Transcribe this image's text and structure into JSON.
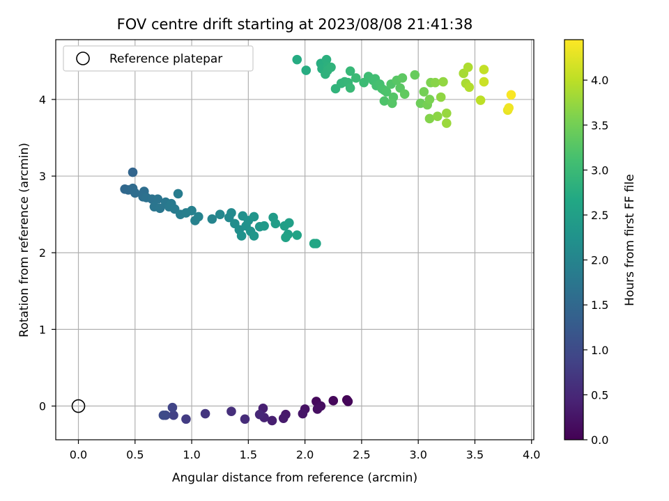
{
  "chart_data": {
    "type": "scatter",
    "title": "FOV centre drift starting at 2023/08/08 21:41:38",
    "xlabel": "Angular distance from reference (arcmin)",
    "ylabel": "Rotation from reference (arcmin)",
    "xlim": [
      -0.2,
      4.02
    ],
    "ylim": [
      -0.44,
      4.78
    ],
    "xticks": [
      "0.0",
      "0.5",
      "1.0",
      "1.5",
      "2.0",
      "2.5",
      "3.0",
      "3.5",
      "4.0"
    ],
    "yticks": [
      "0",
      "1",
      "2",
      "3",
      "4"
    ],
    "grid": true,
    "legend": {
      "placement": "upper left",
      "entries": [
        "Reference platepar"
      ]
    },
    "reference_point": {
      "x": 0.0,
      "y": 0.0,
      "marker": "hollow circle"
    },
    "colorbar": {
      "label": "Hours from first FF file",
      "range": [
        0.0,
        4.45
      ],
      "ticks": [
        "0.0",
        "0.5",
        "1.0",
        "1.5",
        "2.0",
        "2.5",
        "3.0",
        "3.5",
        "4.0"
      ],
      "colormap": "viridis"
    },
    "points": [
      {
        "x": 2.37,
        "y": 0.08,
        "h": 0.02
      },
      {
        "x": 2.38,
        "y": 0.06,
        "h": 0.05
      },
      {
        "x": 2.25,
        "y": 0.07,
        "h": 0.08
      },
      {
        "x": 2.1,
        "y": 0.06,
        "h": 0.1
      },
      {
        "x": 2.14,
        "y": 0.0,
        "h": 0.15
      },
      {
        "x": 2.11,
        "y": -0.04,
        "h": 0.18
      },
      {
        "x": 2.0,
        "y": -0.04,
        "h": 0.22
      },
      {
        "x": 1.98,
        "y": -0.1,
        "h": 0.25
      },
      {
        "x": 1.83,
        "y": -0.11,
        "h": 0.3
      },
      {
        "x": 1.81,
        "y": -0.16,
        "h": 0.33
      },
      {
        "x": 1.71,
        "y": -0.19,
        "h": 0.38
      },
      {
        "x": 1.63,
        "y": -0.03,
        "h": 0.4
      },
      {
        "x": 1.64,
        "y": -0.15,
        "h": 0.45
      },
      {
        "x": 1.6,
        "y": -0.11,
        "h": 0.5
      },
      {
        "x": 1.47,
        "y": -0.17,
        "h": 0.55
      },
      {
        "x": 1.35,
        "y": -0.07,
        "h": 0.6
      },
      {
        "x": 1.12,
        "y": -0.1,
        "h": 0.7
      },
      {
        "x": 0.95,
        "y": -0.17,
        "h": 0.78
      },
      {
        "x": 0.84,
        "y": -0.12,
        "h": 0.85
      },
      {
        "x": 0.83,
        "y": -0.02,
        "h": 0.9
      },
      {
        "x": 0.77,
        "y": -0.12,
        "h": 0.95
      },
      {
        "x": 0.75,
        "y": -0.12,
        "h": 1.0
      },
      {
        "x": 0.48,
        "y": 3.05,
        "h": 1.45
      },
      {
        "x": 0.41,
        "y": 2.83,
        "h": 1.5
      },
      {
        "x": 0.44,
        "y": 2.82,
        "h": 1.52
      },
      {
        "x": 0.48,
        "y": 2.84,
        "h": 1.55
      },
      {
        "x": 0.5,
        "y": 2.78,
        "h": 1.58
      },
      {
        "x": 0.58,
        "y": 2.8,
        "h": 1.6
      },
      {
        "x": 0.57,
        "y": 2.73,
        "h": 1.62
      },
      {
        "x": 0.6,
        "y": 2.72,
        "h": 1.65
      },
      {
        "x": 0.65,
        "y": 2.7,
        "h": 1.67
      },
      {
        "x": 0.7,
        "y": 2.7,
        "h": 1.7
      },
      {
        "x": 0.67,
        "y": 2.6,
        "h": 1.72
      },
      {
        "x": 0.72,
        "y": 2.58,
        "h": 1.75
      },
      {
        "x": 0.77,
        "y": 2.66,
        "h": 1.77
      },
      {
        "x": 0.8,
        "y": 2.6,
        "h": 1.8
      },
      {
        "x": 0.82,
        "y": 2.64,
        "h": 1.82
      },
      {
        "x": 0.85,
        "y": 2.57,
        "h": 1.84
      },
      {
        "x": 0.88,
        "y": 2.77,
        "h": 1.86
      },
      {
        "x": 0.9,
        "y": 2.5,
        "h": 1.88
      },
      {
        "x": 0.95,
        "y": 2.52,
        "h": 1.9
      },
      {
        "x": 1.0,
        "y": 2.55,
        "h": 1.92
      },
      {
        "x": 1.03,
        "y": 2.42,
        "h": 1.94
      },
      {
        "x": 1.06,
        "y": 2.47,
        "h": 1.96
      },
      {
        "x": 1.18,
        "y": 2.44,
        "h": 2.0
      },
      {
        "x": 1.25,
        "y": 2.5,
        "h": 2.05
      },
      {
        "x": 1.33,
        "y": 2.46,
        "h": 2.08
      },
      {
        "x": 1.35,
        "y": 2.52,
        "h": 2.1
      },
      {
        "x": 1.38,
        "y": 2.38,
        "h": 2.15
      },
      {
        "x": 1.42,
        "y": 2.3,
        "h": 2.18
      },
      {
        "x": 1.45,
        "y": 2.48,
        "h": 2.2
      },
      {
        "x": 1.48,
        "y": 2.35,
        "h": 2.22
      },
      {
        "x": 1.44,
        "y": 2.22,
        "h": 2.24
      },
      {
        "x": 1.5,
        "y": 2.42,
        "h": 2.25
      },
      {
        "x": 1.52,
        "y": 2.28,
        "h": 2.27
      },
      {
        "x": 1.55,
        "y": 2.47,
        "h": 2.3
      },
      {
        "x": 1.55,
        "y": 2.22,
        "h": 2.32
      },
      {
        "x": 1.6,
        "y": 2.34,
        "h": 2.35
      },
      {
        "x": 1.64,
        "y": 2.35,
        "h": 2.38
      },
      {
        "x": 1.72,
        "y": 2.46,
        "h": 2.42
      },
      {
        "x": 1.74,
        "y": 2.38,
        "h": 2.45
      },
      {
        "x": 1.82,
        "y": 2.35,
        "h": 2.48
      },
      {
        "x": 1.86,
        "y": 2.39,
        "h": 2.5
      },
      {
        "x": 1.85,
        "y": 2.24,
        "h": 2.52
      },
      {
        "x": 1.83,
        "y": 2.2,
        "h": 2.55
      },
      {
        "x": 1.93,
        "y": 2.23,
        "h": 2.58
      },
      {
        "x": 2.1,
        "y": 2.12,
        "h": 2.62
      },
      {
        "x": 2.08,
        "y": 2.12,
        "h": 2.64
      },
      {
        "x": 1.93,
        "y": 4.52,
        "h": 2.72
      },
      {
        "x": 2.01,
        "y": 4.38,
        "h": 2.74
      },
      {
        "x": 2.14,
        "y": 4.47,
        "h": 2.76
      },
      {
        "x": 2.15,
        "y": 4.4,
        "h": 2.78
      },
      {
        "x": 2.19,
        "y": 4.52,
        "h": 2.8
      },
      {
        "x": 2.2,
        "y": 4.43,
        "h": 2.82
      },
      {
        "x": 2.18,
        "y": 4.33,
        "h": 2.84
      },
      {
        "x": 2.2,
        "y": 4.38,
        "h": 2.85
      },
      {
        "x": 2.23,
        "y": 4.42,
        "h": 2.86
      },
      {
        "x": 2.27,
        "y": 4.14,
        "h": 2.88
      },
      {
        "x": 2.32,
        "y": 4.21,
        "h": 2.9
      },
      {
        "x": 2.35,
        "y": 4.23,
        "h": 2.92
      },
      {
        "x": 2.38,
        "y": 4.22,
        "h": 2.94
      },
      {
        "x": 2.4,
        "y": 4.37,
        "h": 2.96
      },
      {
        "x": 2.4,
        "y": 4.15,
        "h": 2.98
      },
      {
        "x": 2.45,
        "y": 4.28,
        "h": 3.0
      },
      {
        "x": 2.52,
        "y": 4.22,
        "h": 3.02
      },
      {
        "x": 2.56,
        "y": 4.3,
        "h": 3.04
      },
      {
        "x": 2.6,
        "y": 4.25,
        "h": 3.06
      },
      {
        "x": 2.62,
        "y": 4.27,
        "h": 3.08
      },
      {
        "x": 2.63,
        "y": 4.18,
        "h": 3.1
      },
      {
        "x": 2.66,
        "y": 4.2,
        "h": 3.12
      },
      {
        "x": 2.68,
        "y": 4.14,
        "h": 3.14
      },
      {
        "x": 2.7,
        "y": 4.12,
        "h": 3.16
      },
      {
        "x": 2.72,
        "y": 4.1,
        "h": 3.18
      },
      {
        "x": 2.7,
        "y": 3.98,
        "h": 3.2
      },
      {
        "x": 2.76,
        "y": 4.2,
        "h": 3.22
      },
      {
        "x": 2.78,
        "y": 4.03,
        "h": 3.24
      },
      {
        "x": 2.77,
        "y": 3.95,
        "h": 3.26
      },
      {
        "x": 2.81,
        "y": 4.25,
        "h": 3.28
      },
      {
        "x": 2.84,
        "y": 4.15,
        "h": 3.3
      },
      {
        "x": 2.86,
        "y": 4.28,
        "h": 3.32
      },
      {
        "x": 2.88,
        "y": 4.07,
        "h": 3.35
      },
      {
        "x": 2.97,
        "y": 4.32,
        "h": 3.4
      },
      {
        "x": 3.02,
        "y": 3.95,
        "h": 3.45
      },
      {
        "x": 3.05,
        "y": 4.1,
        "h": 3.5
      },
      {
        "x": 3.08,
        "y": 3.93,
        "h": 3.52
      },
      {
        "x": 3.1,
        "y": 4.0,
        "h": 3.55
      },
      {
        "x": 3.11,
        "y": 4.22,
        "h": 3.58
      },
      {
        "x": 3.1,
        "y": 3.75,
        "h": 3.62
      },
      {
        "x": 3.15,
        "y": 4.22,
        "h": 3.65
      },
      {
        "x": 3.17,
        "y": 3.78,
        "h": 3.68
      },
      {
        "x": 3.2,
        "y": 4.03,
        "h": 3.7
      },
      {
        "x": 3.22,
        "y": 4.23,
        "h": 3.72
      },
      {
        "x": 3.25,
        "y": 3.82,
        "h": 3.75
      },
      {
        "x": 3.25,
        "y": 3.69,
        "h": 3.78
      },
      {
        "x": 3.4,
        "y": 4.34,
        "h": 3.85
      },
      {
        "x": 3.42,
        "y": 4.21,
        "h": 3.88
      },
      {
        "x": 3.44,
        "y": 4.42,
        "h": 3.9
      },
      {
        "x": 3.45,
        "y": 4.16,
        "h": 3.93
      },
      {
        "x": 3.55,
        "y": 3.99,
        "h": 4.0
      },
      {
        "x": 3.58,
        "y": 4.39,
        "h": 4.05
      },
      {
        "x": 3.58,
        "y": 4.23,
        "h": 4.1
      },
      {
        "x": 3.79,
        "y": 3.86,
        "h": 4.3
      },
      {
        "x": 3.8,
        "y": 3.89,
        "h": 4.35
      },
      {
        "x": 3.82,
        "y": 4.06,
        "h": 4.42
      }
    ]
  }
}
